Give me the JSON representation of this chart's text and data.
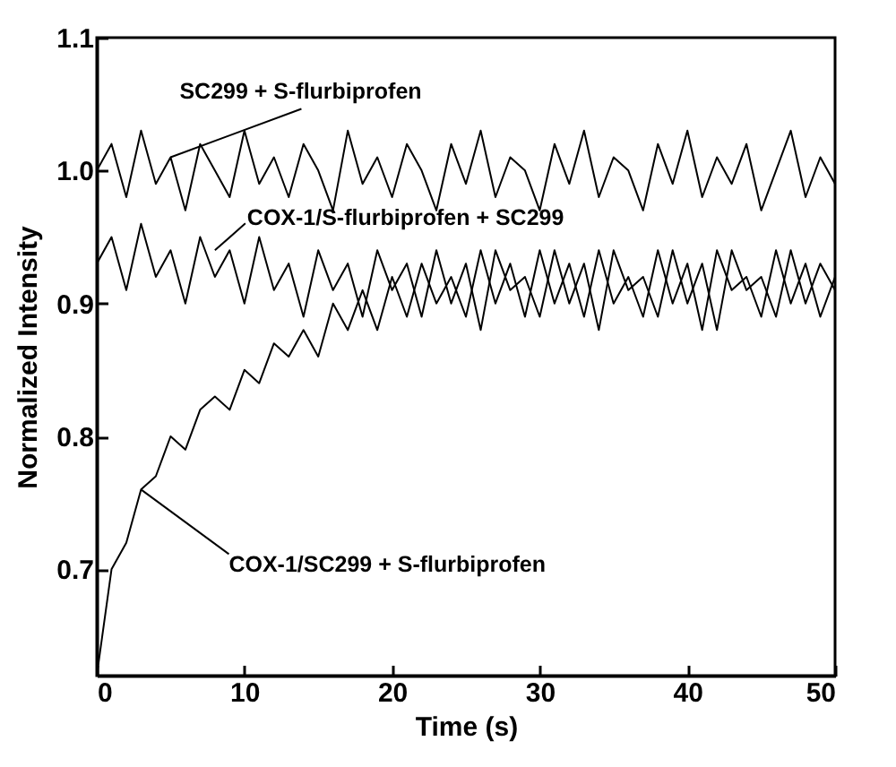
{
  "chart_data": {
    "type": "line",
    "xlabel": "Time (s)",
    "ylabel": "Normalized Intensity",
    "xlim": [
      0,
      50
    ],
    "xticks": [
      0,
      10,
      20,
      30,
      40,
      50
    ],
    "ylim": [
      0.62,
      1.1
    ],
    "yticks": [
      {
        "value": 0.7,
        "label": "0.7"
      },
      {
        "value": 0.8,
        "label": "0.8"
      },
      {
        "value": 0.9,
        "label": "0.9"
      },
      {
        "value": 1.0,
        "label": "1.0"
      },
      {
        "value": 1.1,
        "label": "1.1"
      }
    ],
    "grid": false,
    "x": [
      0,
      1,
      2,
      3,
      4,
      5,
      6,
      7,
      8,
      9,
      10,
      11,
      12,
      13,
      14,
      15,
      16,
      17,
      18,
      19,
      20,
      21,
      22,
      23,
      24,
      25,
      26,
      27,
      28,
      29,
      30,
      31,
      32,
      33,
      34,
      35,
      36,
      37,
      38,
      39,
      40,
      41,
      42,
      43,
      44,
      45,
      46,
      47,
      48,
      49,
      50
    ],
    "series": [
      {
        "color": "#000000",
        "values": [
          1.0,
          1.02,
          0.98,
          1.03,
          0.99,
          1.01,
          0.97,
          1.02,
          1.0,
          0.98,
          1.03,
          0.99,
          1.01,
          0.98,
          1.02,
          1.0,
          0.97,
          1.03,
          0.99,
          1.01,
          0.98,
          1.02,
          1.0,
          0.97,
          1.02,
          0.99,
          1.03,
          0.98,
          1.01,
          1.0,
          0.97,
          1.02,
          0.99,
          1.03,
          0.98,
          1.01,
          1.0,
          0.97,
          1.02,
          0.99,
          1.03,
          0.98,
          1.01,
          0.99,
          1.02,
          0.97,
          1.0,
          1.03,
          0.98,
          1.01,
          0.99
        ]
      },
      {
        "color": "#000000",
        "values": [
          0.93,
          0.95,
          0.91,
          0.96,
          0.92,
          0.94,
          0.9,
          0.95,
          0.92,
          0.94,
          0.9,
          0.95,
          0.91,
          0.93,
          0.89,
          0.94,
          0.91,
          0.93,
          0.89,
          0.94,
          0.91,
          0.93,
          0.89,
          0.94,
          0.9,
          0.93,
          0.88,
          0.94,
          0.91,
          0.92,
          0.89,
          0.94,
          0.9,
          0.93,
          0.88,
          0.94,
          0.91,
          0.92,
          0.89,
          0.94,
          0.9,
          0.93,
          0.88,
          0.94,
          0.91,
          0.92,
          0.89,
          0.94,
          0.9,
          0.93,
          0.91
        ]
      },
      {
        "color": "#000000",
        "values": [
          0.62,
          0.7,
          0.72,
          0.76,
          0.77,
          0.8,
          0.79,
          0.82,
          0.83,
          0.82,
          0.85,
          0.84,
          0.87,
          0.86,
          0.88,
          0.86,
          0.9,
          0.88,
          0.91,
          0.88,
          0.92,
          0.89,
          0.93,
          0.9,
          0.92,
          0.89,
          0.94,
          0.9,
          0.93,
          0.89,
          0.94,
          0.9,
          0.93,
          0.89,
          0.94,
          0.9,
          0.92,
          0.89,
          0.94,
          0.9,
          0.93,
          0.88,
          0.94,
          0.91,
          0.92,
          0.89,
          0.94,
          0.9,
          0.93,
          0.89,
          0.92
        ]
      }
    ],
    "annotations": [
      {
        "text": "SC299 + S-flurbiprofen",
        "x": 5,
        "y": 1.01
      },
      {
        "text": "COX-1/S-flurbiprofen + SC299",
        "x": 8,
        "y": 0.94
      },
      {
        "text": "COX-1/SC299 + S-flurbiprofen",
        "x": 3,
        "y": 0.76
      }
    ]
  }
}
